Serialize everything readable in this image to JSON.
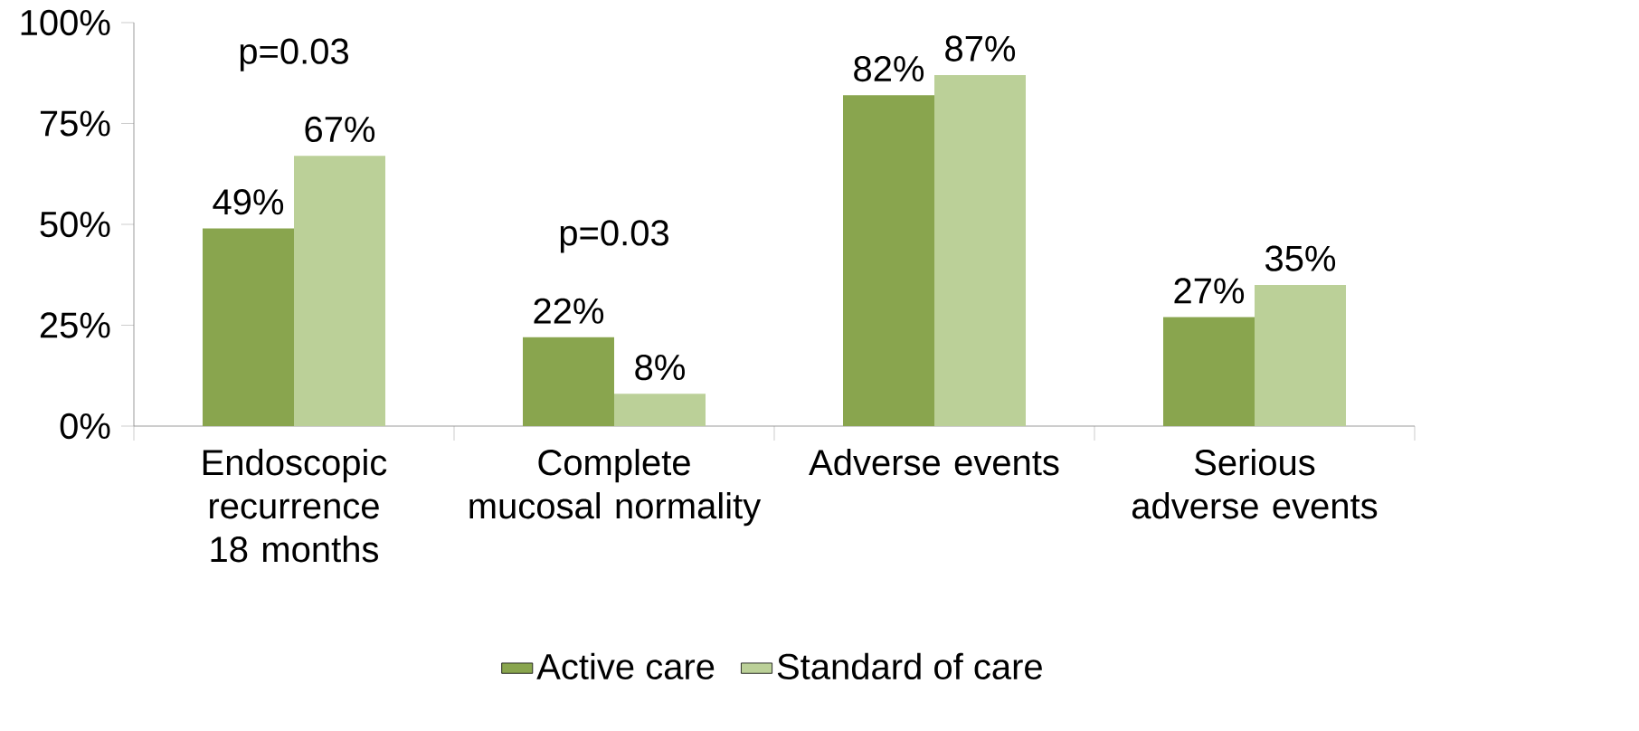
{
  "chart_data": {
    "type": "bar",
    "categories": [
      "Endoscopic recurrence 18 months",
      "Complete mucosal normality",
      "Adverse events",
      "Serious adverse events"
    ],
    "series": [
      {
        "name": "Active care",
        "color": "#89a54e",
        "values": [
          49,
          22,
          82,
          27
        ],
        "value_labels": [
          "49%",
          "22%",
          "82%",
          "27%"
        ]
      },
      {
        "name": "Standard of care",
        "color": "#bbd098",
        "values": [
          67,
          8,
          87,
          35
        ],
        "value_labels": [
          "67%",
          "8%",
          "87%",
          "35%"
        ]
      }
    ],
    "ylim": [
      0,
      100
    ],
    "yticks": [
      {
        "value": 0,
        "label": "0%"
      },
      {
        "value": 25,
        "label": "25%"
      },
      {
        "value": 50,
        "label": "50%"
      },
      {
        "value": 75,
        "label": "75%"
      },
      {
        "value": 100,
        "label": "100%"
      }
    ],
    "annotations": [
      "p=0.03",
      "p=0.03"
    ],
    "grid": false,
    "legend": "bottom"
  }
}
